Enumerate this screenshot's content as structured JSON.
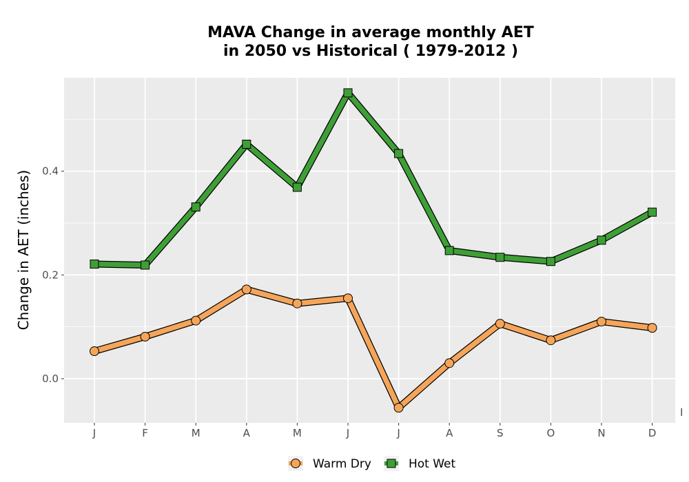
{
  "chart_data": {
    "type": "line",
    "title_lines": [
      "MAVA  Change in average monthly AET",
      "in 2050 vs Historical ( 1979-2012 )"
    ],
    "xlabel": "",
    "ylabel": "Change in AET (inches)",
    "categories": [
      "J",
      "F",
      "M",
      "A",
      "M",
      "J",
      "J",
      "A",
      "S",
      "O",
      "N",
      "D"
    ],
    "yticks": [
      "0.0",
      "0.2",
      "0.4"
    ],
    "ylim": [
      -0.085,
      0.58
    ],
    "grid": true,
    "legend_position": "bottom",
    "series": [
      {
        "name": "Warm Dry",
        "color": "#f5a55a",
        "marker": "circle",
        "values": [
          0.053,
          0.081,
          0.112,
          0.172,
          0.145,
          0.155,
          -0.056,
          0.03,
          0.106,
          0.074,
          0.11,
          0.098
        ]
      },
      {
        "name": "Hot Wet",
        "color": "#3f9f37",
        "marker": "square",
        "values": [
          0.221,
          0.219,
          0.331,
          0.452,
          0.369,
          0.551,
          0.434,
          0.247,
          0.234,
          0.226,
          0.267,
          0.321
        ]
      }
    ],
    "stray_label": "I"
  }
}
